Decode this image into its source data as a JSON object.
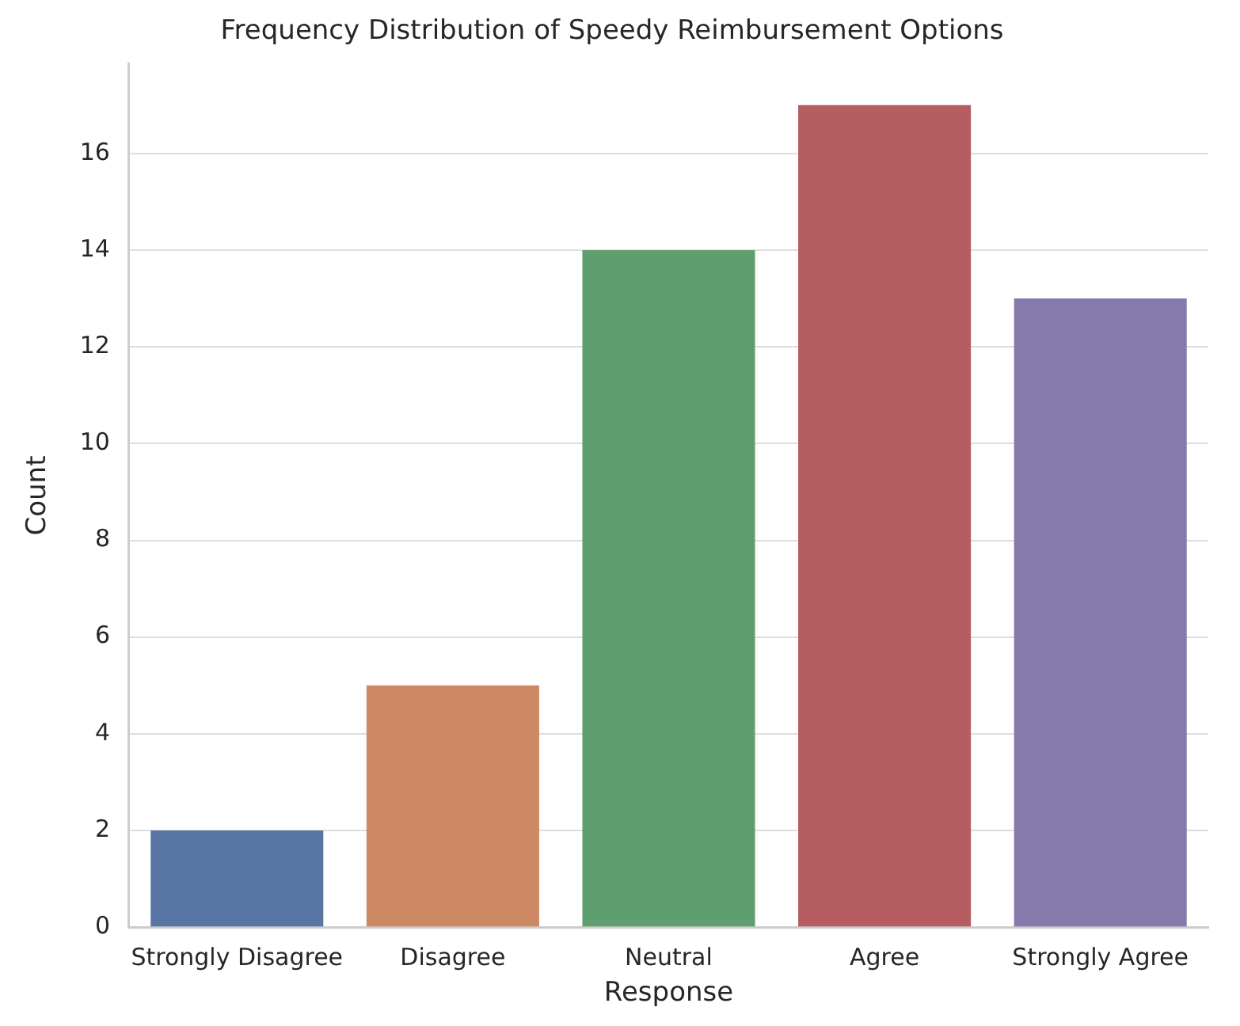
{
  "chart_data": {
    "type": "bar",
    "title": "Frequency Distribution of Speedy Reimbursement Options",
    "xlabel": "Response",
    "ylabel": "Count",
    "categories": [
      "Strongly Disagree",
      "Disagree",
      "Neutral",
      "Agree",
      "Strongly Agree"
    ],
    "values": [
      2,
      5,
      14,
      17,
      13
    ],
    "colors": [
      "#5975a4",
      "#cc8963",
      "#5f9e6e",
      "#b55d60",
      "#857aab"
    ],
    "ylim": [
      0,
      17.85
    ],
    "yticks": [
      0,
      2,
      4,
      6,
      8,
      10,
      12,
      14,
      16
    ],
    "grid": "y",
    "legend": false
  }
}
